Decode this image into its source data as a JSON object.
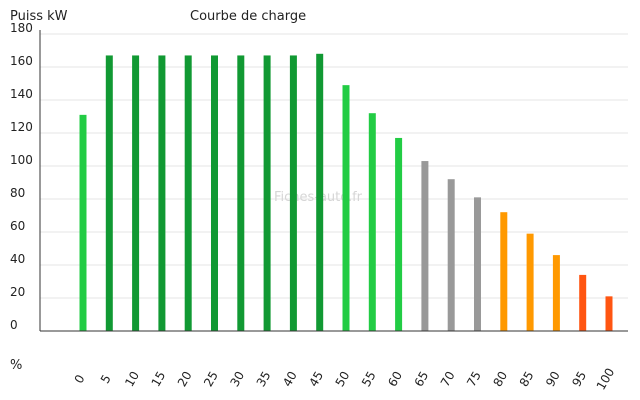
{
  "chart_data": {
    "type": "bar",
    "title": "Courbe de charge",
    "ylabel": "Puiss kW",
    "xlabel": "%",
    "watermark": "Fiches-auto.fr",
    "ylim": [
      0,
      180
    ],
    "y_ticks": [
      "0",
      "20",
      "40",
      "60",
      "80",
      "100",
      "120",
      "140",
      "160",
      "180"
    ],
    "grid": true,
    "categories": [
      "0",
      "5",
      "10",
      "15",
      "20",
      "25",
      "30",
      "35",
      "40",
      "45",
      "50",
      "55",
      "60",
      "65",
      "70",
      "75",
      "80",
      "85",
      "90",
      "95",
      "100"
    ],
    "values": [
      131,
      167,
      167,
      167,
      167,
      167,
      167,
      167,
      167,
      168,
      149,
      132,
      117,
      103,
      92,
      81,
      72,
      59,
      46,
      34,
      21
    ],
    "colors": [
      "#22cc44",
      "#119933",
      "#119933",
      "#119933",
      "#119933",
      "#119933",
      "#119933",
      "#119933",
      "#119933",
      "#119933",
      "#22cc44",
      "#22cc44",
      "#22cc44",
      "#999999",
      "#999999",
      "#999999",
      "#ff9900",
      "#ff9900",
      "#ff9900",
      "#ff5511",
      "#ff5511"
    ]
  }
}
